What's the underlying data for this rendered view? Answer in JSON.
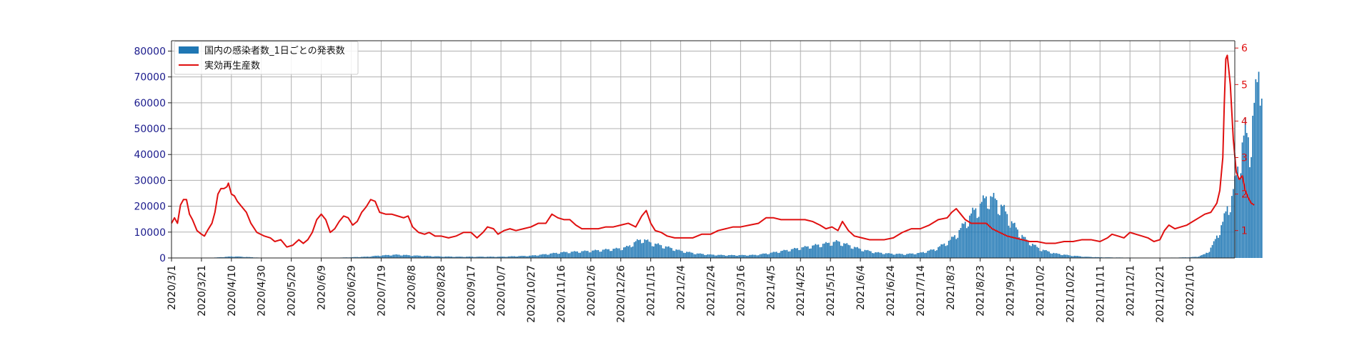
{
  "chart_data": {
    "type": "bar",
    "x_tick_labels": [
      "2020/3/1",
      "2020/3/21",
      "2020/4/10",
      "2020/4/30",
      "2020/5/20",
      "2020/6/9",
      "2020/6/29",
      "2020/7/19",
      "2020/8/8",
      "2020/8/28",
      "2020/9/17",
      "2020/10/7",
      "2020/10/27",
      "2020/11/16",
      "2020/12/6",
      "2020/12/26",
      "2021/1/15",
      "2021/2/4",
      "2021/2/24",
      "2021/3/16",
      "2021/4/5",
      "2021/4/25",
      "2021/5/15",
      "2021/6/4",
      "2021/6/24",
      "2021/7/14",
      "2021/8/3",
      "2021/8/23",
      "2021/9/12",
      "2021/10/2",
      "2021/10/22",
      "2021/11/11",
      "2021/12/1",
      "2021/12/21",
      "2022/1/10"
    ],
    "x_tick_step_days": 20,
    "left_axis": {
      "ticks": [
        0,
        10000,
        20000,
        30000,
        40000,
        50000,
        60000,
        70000,
        80000
      ],
      "ylim": [
        0,
        84000
      ],
      "color": "#1a1a8c"
    },
    "right_axis": {
      "ticks": [
        1,
        2,
        3,
        4,
        5,
        6
      ],
      "ylim": [
        0.25,
        6.2
      ],
      "color": "#e01010"
    },
    "grid": true,
    "legend_position": "top-left",
    "series": [
      {
        "name": "国内の感染者数_1日ごとの発表数",
        "kind": "bar",
        "axis": "left",
        "color": "#1f77b4",
        "points": [
          [
            0,
            10
          ],
          [
            10,
            40
          ],
          [
            20,
            60
          ],
          [
            30,
            200
          ],
          [
            35,
            400
          ],
          [
            40,
            600
          ],
          [
            45,
            550
          ],
          [
            50,
            400
          ],
          [
            55,
            250
          ],
          [
            60,
            100
          ],
          [
            70,
            40
          ],
          [
            80,
            30
          ],
          [
            90,
            30
          ],
          [
            100,
            60
          ],
          [
            110,
            100
          ],
          [
            120,
            300
          ],
          [
            130,
            500
          ],
          [
            140,
            1000
          ],
          [
            150,
            1300
          ],
          [
            155,
            1200
          ],
          [
            160,
            1000
          ],
          [
            170,
            800
          ],
          [
            180,
            600
          ],
          [
            190,
            500
          ],
          [
            200,
            500
          ],
          [
            210,
            500
          ],
          [
            220,
            500
          ],
          [
            230,
            700
          ],
          [
            240,
            900
          ],
          [
            250,
            1500
          ],
          [
            260,
            2200
          ],
          [
            270,
            2500
          ],
          [
            280,
            2800
          ],
          [
            290,
            3300
          ],
          [
            300,
            3800
          ],
          [
            305,
            4500
          ],
          [
            310,
            6500
          ],
          [
            315,
            7500
          ],
          [
            320,
            6000
          ],
          [
            330,
            4500
          ],
          [
            340,
            2800
          ],
          [
            350,
            1800
          ],
          [
            360,
            1300
          ],
          [
            370,
            1100
          ],
          [
            380,
            1100
          ],
          [
            390,
            1200
          ],
          [
            400,
            2000
          ],
          [
            410,
            3000
          ],
          [
            420,
            4000
          ],
          [
            430,
            5000
          ],
          [
            440,
            6000
          ],
          [
            445,
            6500
          ],
          [
            450,
            5500
          ],
          [
            460,
            3500
          ],
          [
            470,
            2200
          ],
          [
            480,
            1700
          ],
          [
            490,
            1500
          ],
          [
            500,
            2000
          ],
          [
            510,
            3500
          ],
          [
            520,
            7000
          ],
          [
            525,
            10000
          ],
          [
            530,
            14000
          ],
          [
            535,
            18000
          ],
          [
            540,
            21000
          ],
          [
            545,
            24500
          ],
          [
            550,
            23000
          ],
          [
            555,
            20000
          ],
          [
            560,
            15000
          ],
          [
            565,
            11000
          ],
          [
            570,
            7500
          ],
          [
            575,
            5500
          ],
          [
            580,
            3500
          ],
          [
            590,
            1800
          ],
          [
            600,
            1000
          ],
          [
            610,
            500
          ],
          [
            620,
            280
          ],
          [
            630,
            200
          ],
          [
            640,
            150
          ],
          [
            650,
            120
          ],
          [
            660,
            130
          ],
          [
            670,
            150
          ],
          [
            680,
            300
          ],
          [
            685,
            500
          ],
          [
            690,
            1500
          ],
          [
            693,
            3000
          ],
          [
            696,
            6000
          ],
          [
            699,
            10000
          ],
          [
            702,
            14000
          ],
          [
            705,
            20000
          ],
          [
            708,
            24000
          ],
          [
            711,
            32000
          ],
          [
            714,
            42000
          ],
          [
            717,
            50000
          ],
          [
            720,
            45000
          ],
          [
            723,
            60000
          ],
          [
            726,
            72000
          ],
          [
            728,
            79000
          ]
        ]
      },
      {
        "name": "実効再生産数",
        "kind": "line",
        "axis": "right",
        "color": "#e01010",
        "points": [
          [
            0,
            1.2
          ],
          [
            2,
            1.35
          ],
          [
            4,
            1.2
          ],
          [
            6,
            1.7
          ],
          [
            8,
            1.85
          ],
          [
            10,
            1.85
          ],
          [
            12,
            1.45
          ],
          [
            14,
            1.3
          ],
          [
            17,
            1.0
          ],
          [
            20,
            0.9
          ],
          [
            22,
            0.85
          ],
          [
            24,
            1.0
          ],
          [
            27,
            1.2
          ],
          [
            29,
            1.5
          ],
          [
            31,
            2.0
          ],
          [
            33,
            2.15
          ],
          [
            35,
            2.15
          ],
          [
            37,
            2.2
          ],
          [
            38,
            2.3
          ],
          [
            40,
            2.0
          ],
          [
            42,
            1.95
          ],
          [
            44,
            1.8
          ],
          [
            47,
            1.65
          ],
          [
            50,
            1.5
          ],
          [
            53,
            1.2
          ],
          [
            57,
            0.95
          ],
          [
            62,
            0.85
          ],
          [
            66,
            0.8
          ],
          [
            69,
            0.7
          ],
          [
            73,
            0.75
          ],
          [
            77,
            0.55
          ],
          [
            81,
            0.6
          ],
          [
            85,
            0.75
          ],
          [
            88,
            0.65
          ],
          [
            91,
            0.75
          ],
          [
            94,
            0.95
          ],
          [
            97,
            1.3
          ],
          [
            100,
            1.45
          ],
          [
            103,
            1.3
          ],
          [
            106,
            0.95
          ],
          [
            109,
            1.05
          ],
          [
            112,
            1.25
          ],
          [
            115,
            1.4
          ],
          [
            118,
            1.35
          ],
          [
            121,
            1.15
          ],
          [
            124,
            1.25
          ],
          [
            127,
            1.5
          ],
          [
            130,
            1.65
          ],
          [
            133,
            1.85
          ],
          [
            136,
            1.8
          ],
          [
            139,
            1.5
          ],
          [
            143,
            1.45
          ],
          [
            147,
            1.45
          ],
          [
            151,
            1.4
          ],
          [
            155,
            1.35
          ],
          [
            158,
            1.4
          ],
          [
            161,
            1.1
          ],
          [
            165,
            0.95
          ],
          [
            169,
            0.9
          ],
          [
            172,
            0.95
          ],
          [
            176,
            0.85
          ],
          [
            180,
            0.85
          ],
          [
            185,
            0.8
          ],
          [
            190,
            0.85
          ],
          [
            195,
            0.95
          ],
          [
            200,
            0.95
          ],
          [
            204,
            0.8
          ],
          [
            208,
            0.95
          ],
          [
            211,
            1.1
          ],
          [
            215,
            1.05
          ],
          [
            218,
            0.9
          ],
          [
            222,
            1.0
          ],
          [
            226,
            1.05
          ],
          [
            230,
            1.0
          ],
          [
            235,
            1.05
          ],
          [
            240,
            1.1
          ],
          [
            245,
            1.2
          ],
          [
            250,
            1.2
          ],
          [
            254,
            1.45
          ],
          [
            258,
            1.35
          ],
          [
            262,
            1.3
          ],
          [
            266,
            1.3
          ],
          [
            270,
            1.15
          ],
          [
            274,
            1.05
          ],
          [
            280,
            1.05
          ],
          [
            285,
            1.05
          ],
          [
            290,
            1.1
          ],
          [
            295,
            1.1
          ],
          [
            300,
            1.15
          ],
          [
            305,
            1.2
          ],
          [
            310,
            1.1
          ],
          [
            314,
            1.4
          ],
          [
            317,
            1.55
          ],
          [
            320,
            1.2
          ],
          [
            323,
            1.0
          ],
          [
            327,
            0.95
          ],
          [
            331,
            0.85
          ],
          [
            336,
            0.8
          ],
          [
            342,
            0.8
          ],
          [
            348,
            0.8
          ],
          [
            354,
            0.9
          ],
          [
            360,
            0.9
          ],
          [
            365,
            1.0
          ],
          [
            370,
            1.05
          ],
          [
            375,
            1.1
          ],
          [
            380,
            1.1
          ],
          [
            386,
            1.15
          ],
          [
            392,
            1.2
          ],
          [
            397,
            1.35
          ],
          [
            402,
            1.35
          ],
          [
            407,
            1.3
          ],
          [
            412,
            1.3
          ],
          [
            417,
            1.3
          ],
          [
            423,
            1.3
          ],
          [
            428,
            1.25
          ],
          [
            433,
            1.15
          ],
          [
            437,
            1.05
          ],
          [
            441,
            1.1
          ],
          [
            445,
            1.0
          ],
          [
            448,
            1.25
          ],
          [
            452,
            1.0
          ],
          [
            456,
            0.85
          ],
          [
            461,
            0.8
          ],
          [
            466,
            0.75
          ],
          [
            471,
            0.75
          ],
          [
            476,
            0.75
          ],
          [
            482,
            0.8
          ],
          [
            488,
            0.95
          ],
          [
            494,
            1.05
          ],
          [
            500,
            1.05
          ],
          [
            506,
            1.15
          ],
          [
            512,
            1.3
          ],
          [
            518,
            1.35
          ],
          [
            521,
            1.5
          ],
          [
            524,
            1.6
          ],
          [
            527,
            1.45
          ],
          [
            530,
            1.3
          ],
          [
            534,
            1.2
          ],
          [
            539,
            1.2
          ],
          [
            544,
            1.2
          ],
          [
            548,
            1.05
          ],
          [
            553,
            0.95
          ],
          [
            558,
            0.85
          ],
          [
            563,
            0.8
          ],
          [
            568,
            0.75
          ],
          [
            573,
            0.7
          ],
          [
            578,
            0.7
          ],
          [
            584,
            0.65
          ],
          [
            590,
            0.65
          ],
          [
            596,
            0.7
          ],
          [
            602,
            0.7
          ],
          [
            608,
            0.75
          ],
          [
            614,
            0.75
          ],
          [
            620,
            0.7
          ],
          [
            625,
            0.8
          ],
          [
            628,
            0.9
          ],
          [
            632,
            0.85
          ],
          [
            636,
            0.8
          ],
          [
            640,
            0.95
          ],
          [
            644,
            0.9
          ],
          [
            648,
            0.85
          ],
          [
            652,
            0.8
          ],
          [
            656,
            0.7
          ],
          [
            660,
            0.75
          ],
          [
            663,
            1.0
          ],
          [
            666,
            1.15
          ],
          [
            670,
            1.05
          ],
          [
            674,
            1.1
          ],
          [
            678,
            1.15
          ],
          [
            682,
            1.25
          ],
          [
            686,
            1.35
          ],
          [
            690,
            1.45
          ],
          [
            694,
            1.5
          ],
          [
            698,
            1.75
          ],
          [
            700,
            2.1
          ],
          [
            702,
            3.0
          ],
          [
            703,
            4.5
          ],
          [
            704,
            5.7
          ],
          [
            705,
            5.8
          ],
          [
            707,
            5.0
          ],
          [
            709,
            3.5
          ],
          [
            711,
            2.6
          ],
          [
            713,
            2.4
          ],
          [
            715,
            2.5
          ],
          [
            717,
            2.1
          ],
          [
            719,
            1.9
          ],
          [
            721,
            1.75
          ],
          [
            723,
            1.7
          ]
        ]
      }
    ]
  }
}
